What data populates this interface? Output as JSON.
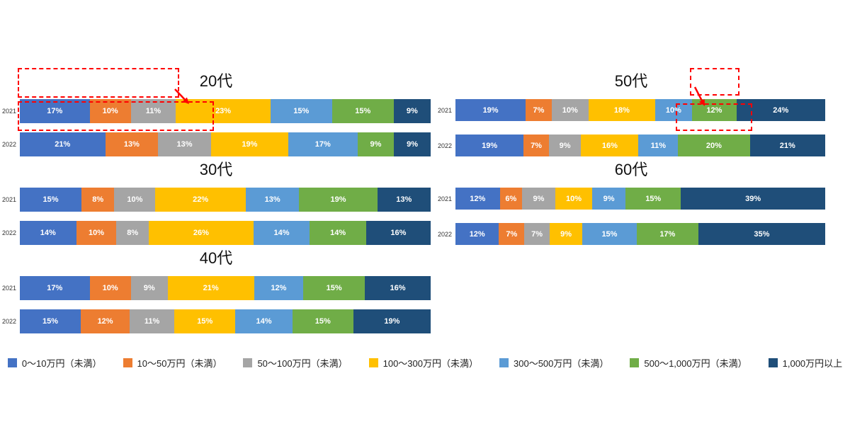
{
  "annotation_color": "#FF0000",
  "legend": {
    "items": [
      {
        "label": "0〜10万円（未満）",
        "color": "#4472C4"
      },
      {
        "label": "10〜50万円（未満）",
        "color": "#ED7D31"
      },
      {
        "label": "50〜100万円（未満）",
        "color": "#A5A5A5"
      },
      {
        "label": "100〜300万円（未満）",
        "color": "#FFC000"
      },
      {
        "label": "300〜500万円（未満）",
        "color": "#5B9BD5"
      },
      {
        "label": "500〜1,000万円（未満）",
        "color": "#70AD47"
      },
      {
        "label": "1,000万円以上",
        "color": "#1F4E79"
      }
    ]
  },
  "chart_data": [
    {
      "type": "bar",
      "variant": "stacked-horizontal-100",
      "unit": "%",
      "title": "20代",
      "categories": [
        "2021",
        "2022"
      ],
      "series": [
        {
          "name": "0〜10万円（未満）",
          "values": [
            17,
            21
          ]
        },
        {
          "name": "10〜50万円（未満）",
          "values": [
            10,
            13
          ]
        },
        {
          "name": "50〜100万円（未満）",
          "values": [
            11,
            13
          ]
        },
        {
          "name": "100〜300万円（未満）",
          "values": [
            23,
            19
          ]
        },
        {
          "name": "300〜500万円（未満）",
          "values": [
            15,
            17
          ]
        },
        {
          "name": "500〜1,000万円（未満）",
          "values": [
            15,
            9
          ]
        },
        {
          "name": "1,000万円以上",
          "values": [
            9,
            9
          ]
        }
      ],
      "highlight": {
        "boxes": [
          {
            "row": 0,
            "seg_start": 0,
            "seg_end": 2
          },
          {
            "row": 1,
            "seg_start": 0,
            "seg_end": 2
          }
        ],
        "arrow_at": "end"
      }
    },
    {
      "type": "bar",
      "variant": "stacked-horizontal-100",
      "unit": "%",
      "title": "30代",
      "categories": [
        "2021",
        "2022"
      ],
      "series": [
        {
          "name": "0〜10万円（未満）",
          "values": [
            15,
            14
          ]
        },
        {
          "name": "10〜50万円（未満）",
          "values": [
            8,
            10
          ]
        },
        {
          "name": "50〜100万円（未満）",
          "values": [
            10,
            8
          ]
        },
        {
          "name": "100〜300万円（未満）",
          "values": [
            22,
            26
          ]
        },
        {
          "name": "300〜500万円（未満）",
          "values": [
            13,
            14
          ]
        },
        {
          "name": "500〜1,000万円（未満）",
          "values": [
            19,
            14
          ]
        },
        {
          "name": "1,000万円以上",
          "values": [
            13,
            16
          ]
        }
      ],
      "highlight": null
    },
    {
      "type": "bar",
      "variant": "stacked-horizontal-100",
      "unit": "%",
      "title": "40代",
      "categories": [
        "2021",
        "2022"
      ],
      "series": [
        {
          "name": "0〜10万円（未満）",
          "values": [
            17,
            15
          ]
        },
        {
          "name": "10〜50万円（未満）",
          "values": [
            10,
            12
          ]
        },
        {
          "name": "50〜100万円（未満）",
          "values": [
            9,
            11
          ]
        },
        {
          "name": "100〜300万円（未満）",
          "values": [
            21,
            15
          ]
        },
        {
          "name": "300〜500万円（未満）",
          "values": [
            12,
            14
          ]
        },
        {
          "name": "500〜1,000万円（未満）",
          "values": [
            15,
            15
          ]
        },
        {
          "name": "1,000万円以上",
          "values": [
            16,
            19
          ]
        }
      ],
      "highlight": null
    },
    {
      "type": "bar",
      "variant": "stacked-horizontal-100",
      "unit": "%",
      "title": "50代",
      "categories": [
        "2021",
        "2022"
      ],
      "series": [
        {
          "name": "0〜10万円（未満）",
          "values": [
            19,
            19
          ]
        },
        {
          "name": "10〜50万円（未満）",
          "values": [
            7,
            7
          ]
        },
        {
          "name": "50〜100万円（未満）",
          "values": [
            10,
            9
          ]
        },
        {
          "name": "100〜300万円（未満）",
          "values": [
            18,
            16
          ]
        },
        {
          "name": "300〜500万円（未満）",
          "values": [
            10,
            11
          ]
        },
        {
          "name": "500〜1,000万円（未満）",
          "values": [
            12,
            20
          ]
        },
        {
          "name": "1,000万円以上",
          "values": [
            24,
            21
          ]
        }
      ],
      "highlight": {
        "boxes": [
          {
            "row": 0,
            "seg_start": 5,
            "seg_end": 5
          },
          {
            "row": 1,
            "seg_start": 5,
            "seg_end": 5
          }
        ],
        "arrow_at": "start"
      }
    },
    {
      "type": "bar",
      "variant": "stacked-horizontal-100",
      "unit": "%",
      "title": "60代",
      "categories": [
        "2021",
        "2022"
      ],
      "series": [
        {
          "name": "0〜10万円（未満）",
          "values": [
            12,
            12
          ]
        },
        {
          "name": "10〜50万円（未満）",
          "values": [
            6,
            7
          ]
        },
        {
          "name": "50〜100万円（未満）",
          "values": [
            9,
            7
          ]
        },
        {
          "name": "100〜300万円（未満）",
          "values": [
            10,
            9
          ]
        },
        {
          "name": "300〜500万円（未満）",
          "values": [
            9,
            15
          ]
        },
        {
          "name": "500〜1,000万円（未満）",
          "values": [
            15,
            17
          ]
        },
        {
          "name": "1,000万円以上",
          "values": [
            39,
            35
          ]
        }
      ],
      "highlight": null
    }
  ]
}
